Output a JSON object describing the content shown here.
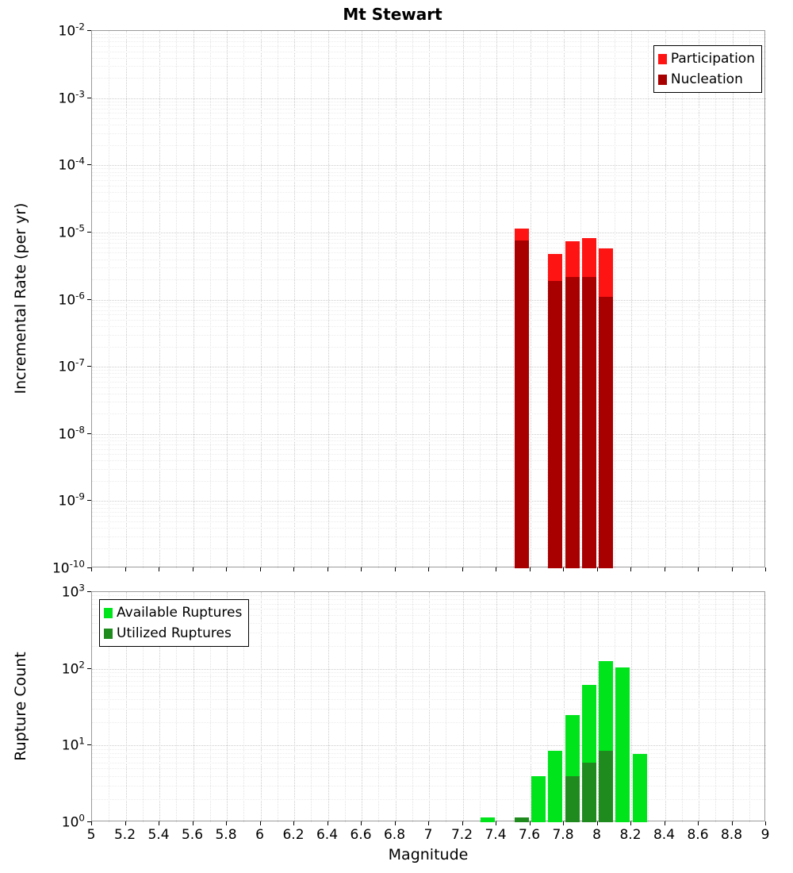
{
  "title": "Mt Stewart",
  "colors": {
    "participation": "#ff1414",
    "nucleation": "#a80000",
    "available": "#00e41c",
    "utilized": "#1f8b1f",
    "grid_major": "#cccccc",
    "grid_minor": "#e8e8e8",
    "axis": "#000000"
  },
  "chart_data": [
    {
      "type": "bar",
      "title": "Mt Stewart",
      "ylabel": "Incremental Rate (per yr)",
      "xlabel": "",
      "yscale": "log",
      "ylim": [
        1e-10,
        0.01
      ],
      "xlim": [
        5,
        9
      ],
      "grid": true,
      "y_tick_exponents": [
        -2,
        -3,
        -4,
        -5,
        -6,
        -7,
        -8,
        -9,
        -10
      ],
      "x_tick_values": [
        5,
        5.2,
        5.4,
        5.6,
        5.8,
        6,
        6.2,
        6.4,
        6.6,
        6.8,
        7,
        7.2,
        7.4,
        7.6,
        7.8,
        8,
        8.2,
        8.4,
        8.6,
        8.8,
        9
      ],
      "x_tick_labels": [],
      "legend": {
        "position": "top-right",
        "entries": [
          {
            "label": "Participation",
            "color": "#ff1414"
          },
          {
            "label": "Nucleation",
            "color": "#a80000"
          }
        ]
      },
      "series": [
        {
          "name": "Participation",
          "color": "#ff1414",
          "x": [
            7.55,
            7.75,
            7.85,
            7.95,
            8.05
          ],
          "y": [
            1.15e-05,
            4.8e-06,
            7.3e-06,
            8.3e-06,
            5.8e-06
          ]
        },
        {
          "name": "Nucleation",
          "color": "#a80000",
          "x": [
            7.55,
            7.75,
            7.85,
            7.95,
            8.05
          ],
          "y": [
            7.5e-06,
            1.9e-06,
            2.2e-06,
            2.2e-06,
            1.1e-06
          ]
        }
      ],
      "bar_floor": 1e-10
    },
    {
      "type": "bar",
      "title": "",
      "ylabel": "Rupture Count",
      "xlabel": "Magnitude",
      "yscale": "log",
      "ylim": [
        1,
        1000
      ],
      "xlim": [
        5,
        9
      ],
      "grid": true,
      "y_tick_exponents": [
        0,
        1,
        2,
        3
      ],
      "x_tick_values": [
        5,
        5.2,
        5.4,
        5.6,
        5.8,
        6,
        6.2,
        6.4,
        6.6,
        6.8,
        7,
        7.2,
        7.4,
        7.6,
        7.8,
        8,
        8.2,
        8.4,
        8.6,
        8.8,
        9
      ],
      "x_tick_labels": [
        "5",
        "5.2",
        "5.4",
        "5.6",
        "5.8",
        "6",
        "6.2",
        "6.4",
        "6.6",
        "6.8",
        "7",
        "7.2",
        "7.4",
        "7.6",
        "7.8",
        "8",
        "8.2",
        "8.4",
        "8.6",
        "8.8",
        "9"
      ],
      "legend": {
        "position": "top-left",
        "entries": [
          {
            "label": "Available Ruptures",
            "color": "#00e41c"
          },
          {
            "label": "Utilized Ruptures",
            "color": "#1f8b1f"
          }
        ]
      },
      "series": [
        {
          "name": "Available Ruptures",
          "color": "#00e41c",
          "x": [
            7.35,
            7.55,
            7.65,
            7.75,
            7.85,
            7.95,
            8.05,
            8.15,
            8.25
          ],
          "y": [
            1.15,
            1.15,
            4,
            8.5,
            25,
            62,
            125,
            105,
            7.8
          ]
        },
        {
          "name": "Utilized Ruptures",
          "color": "#1f8b1f",
          "x": [
            7.55,
            7.85,
            7.95,
            8.05
          ],
          "y": [
            1.15,
            4,
            6,
            8.5
          ]
        }
      ],
      "bar_floor": 1
    }
  ]
}
